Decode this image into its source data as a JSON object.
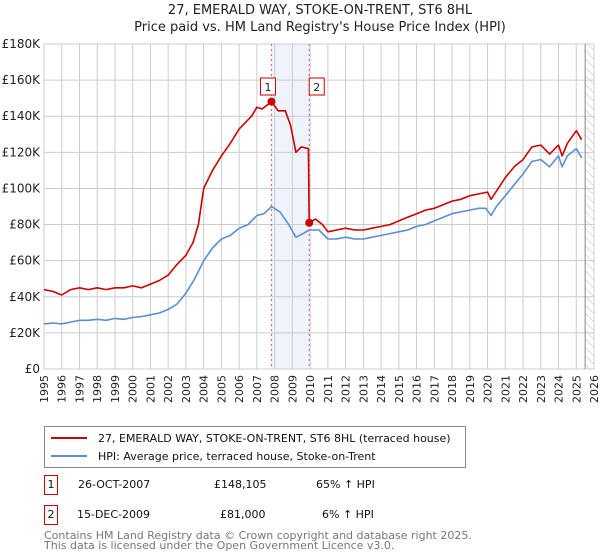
{
  "chart_data": {
    "type": "line",
    "title": "27, EMERALD WAY, STOKE-ON-TRENT, ST6 8HL",
    "subtitle": "Price paid vs. HM Land Registry's House Price Index (HPI)",
    "xlim": [
      1995,
      2026
    ],
    "ylim": [
      0,
      180000
    ],
    "x_ticks": [
      "1995",
      "1996",
      "1997",
      "1998",
      "1999",
      "2000",
      "2001",
      "2002",
      "2003",
      "2004",
      "2005",
      "2006",
      "2007",
      "2008",
      "2009",
      "2010",
      "2011",
      "2012",
      "2013",
      "2014",
      "2015",
      "2016",
      "2017",
      "2018",
      "2019",
      "2020",
      "2021",
      "2022",
      "2023",
      "2024",
      "2025",
      "2026"
    ],
    "y_ticks": [
      {
        "v": 0,
        "label": "£0"
      },
      {
        "v": 20000,
        "label": "£20K"
      },
      {
        "v": 40000,
        "label": "£40K"
      },
      {
        "v": 60000,
        "label": "£60K"
      },
      {
        "v": 80000,
        "label": "£80K"
      },
      {
        "v": 100000,
        "label": "£100K"
      },
      {
        "v": 120000,
        "label": "£120K"
      },
      {
        "v": 140000,
        "label": "£140K"
      },
      {
        "v": 160000,
        "label": "£160K"
      },
      {
        "v": 180000,
        "label": "£180K"
      }
    ],
    "grid": true,
    "shaded_period": [
      2007.82,
      2009.95
    ],
    "forecast_hatch_from": 2025.5,
    "series": [
      {
        "name": "27, EMERALD WAY, STOKE-ON-TRENT, ST6 8HL (terraced house)",
        "color": "#cc0000",
        "x": [
          1995,
          1995.5,
          1996,
          1996.5,
          1997,
          1997.5,
          1998,
          1998.5,
          1999,
          1999.5,
          2000,
          2000.5,
          2001,
          2001.5,
          2002,
          2002.5,
          2003,
          2003.4,
          2003.7,
          2004,
          2004.5,
          2005,
          2005.5,
          2006,
          2006.4,
          2006.7,
          2007,
          2007.3,
          2007.82,
          2008.2,
          2008.6,
          2008.9,
          2009.2,
          2009.5,
          2009.9,
          2009.95,
          2010.3,
          2010.7,
          2011,
          2011.5,
          2012,
          2012.5,
          2013,
          2013.5,
          2014,
          2014.5,
          2015,
          2015.5,
          2016,
          2016.5,
          2017,
          2017.5,
          2018,
          2018.5,
          2019,
          2019.5,
          2020,
          2020.2,
          2020.6,
          2021,
          2021.5,
          2022,
          2022.5,
          2023,
          2023.5,
          2024,
          2024.2,
          2024.5,
          2025,
          2025.3
        ],
        "y": [
          44000,
          43000,
          41000,
          44000,
          45000,
          44000,
          45000,
          44000,
          45000,
          45000,
          46000,
          45000,
          47000,
          49000,
          52000,
          58000,
          63000,
          70000,
          80000,
          100000,
          110000,
          118000,
          125000,
          133000,
          137000,
          140000,
          145000,
          144000,
          148105,
          143000,
          143000,
          135000,
          120000,
          123000,
          122000,
          81000,
          83000,
          80000,
          76000,
          77000,
          78000,
          77000,
          77000,
          78000,
          79000,
          80000,
          82000,
          84000,
          86000,
          88000,
          89000,
          91000,
          93000,
          94000,
          96000,
          97000,
          98000,
          94000,
          100000,
          106000,
          112000,
          116000,
          123000,
          124000,
          119000,
          124000,
          118000,
          125000,
          132000,
          127000
        ]
      },
      {
        "name": "HPI: Average price, terraced house, Stoke-on-Trent",
        "color": "#5b8fd0",
        "x": [
          1995,
          1995.5,
          1996,
          1996.5,
          1997,
          1997.5,
          1998,
          1998.5,
          1999,
          1999.5,
          2000,
          2000.5,
          2001,
          2001.5,
          2002,
          2002.5,
          2003,
          2003.5,
          2004,
          2004.5,
          2005,
          2005.5,
          2006,
          2006.5,
          2007,
          2007.4,
          2007.82,
          2008.3,
          2008.8,
          2009.2,
          2009.6,
          2009.95,
          2010.5,
          2011,
          2011.5,
          2012,
          2012.5,
          2013,
          2013.5,
          2014,
          2014.5,
          2015,
          2015.5,
          2016,
          2016.5,
          2017,
          2017.5,
          2018,
          2018.5,
          2019,
          2019.5,
          2019.9,
          2020.2,
          2020.5,
          2021,
          2021.5,
          2022,
          2022.5,
          2023,
          2023.5,
          2024,
          2024.2,
          2024.5,
          2025,
          2025.3
        ],
        "y": [
          25000,
          25500,
          25000,
          26000,
          27000,
          27000,
          27500,
          27000,
          28000,
          27500,
          28500,
          29000,
          30000,
          31000,
          33000,
          36000,
          42000,
          50000,
          60000,
          67000,
          72000,
          74000,
          78000,
          80000,
          85000,
          86000,
          90000,
          87000,
          80000,
          73000,
          75000,
          77000,
          77000,
          72000,
          72000,
          73000,
          72000,
          72000,
          73000,
          74000,
          75000,
          76000,
          77000,
          79000,
          80000,
          82000,
          84000,
          86000,
          87000,
          88000,
          89000,
          89000,
          85000,
          90000,
          96000,
          102000,
          108000,
          115000,
          116000,
          112000,
          118000,
          112000,
          118000,
          122000,
          117000
        ]
      }
    ],
    "annotations": [
      {
        "label": "1",
        "x": 2007.82,
        "y": 148105
      },
      {
        "label": "2",
        "x": 2009.95,
        "y": 81000
      }
    ]
  },
  "legend": {
    "property": "27, EMERALD WAY, STOKE-ON-TRENT, ST6 8HL (terraced house)",
    "hpi": "HPI: Average price, terraced house, Stoke-on-Trent"
  },
  "sales": [
    {
      "num": "1",
      "date": "26-OCT-2007",
      "price": "£148,105",
      "hpi": "65% ↑ HPI"
    },
    {
      "num": "2",
      "date": "15-DEC-2009",
      "price": "£81,000",
      "hpi": "6% ↑ HPI"
    }
  ],
  "footer": {
    "line1": "Contains HM Land Registry data © Crown copyright and database right 2025.",
    "line2": "This data is licensed under the Open Government Licence v3.0."
  },
  "colors": {
    "property": "#cc0000",
    "hpi": "#5b8fd0",
    "shade": "#eef3fc",
    "grid": "#cccccc"
  }
}
